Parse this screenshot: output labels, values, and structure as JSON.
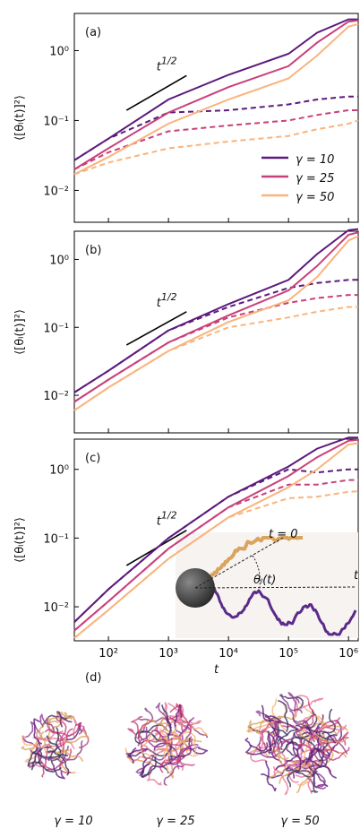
{
  "chart_data": [
    {
      "type": "line",
      "label": "(a)",
      "ylabel": "⟨[θₗ(t)]²⟩",
      "xscale": "log",
      "yscale": "log",
      "xlim": [
        27,
        1450000
      ],
      "ylim": [
        0.0035,
        3.4
      ],
      "xticks": [
        100,
        1000,
        10000,
        100000,
        1000000
      ],
      "yticks": [
        {
          "value": 0.01,
          "label": "10⁻²"
        },
        {
          "value": 0.1,
          "label": "10⁻¹"
        },
        {
          "value": 1,
          "label": "10⁰"
        }
      ],
      "legend": "lower right",
      "slope_line": {
        "x": [
          200,
          2000
        ],
        "y": [
          0.14,
          0.44
        ],
        "base": "t",
        "exponent": "1/2"
      },
      "x": [
        27,
        100,
        1000,
        10000,
        100000,
        300000,
        1000000,
        1450000
      ],
      "series": [
        {
          "name": "γ = 10",
          "color": "#5c1a7d",
          "values": [
            0.027,
            0.055,
            0.2,
            0.45,
            0.9,
            1.8,
            2.8,
            2.8
          ],
          "dashed_values": [
            0.027,
            0.055,
            0.13,
            0.14,
            0.17,
            0.2,
            0.22,
            0.22
          ]
        },
        {
          "name": "γ = 25",
          "color": "#c8407a",
          "values": [
            0.02,
            0.04,
            0.13,
            0.3,
            0.6,
            1.3,
            2.6,
            2.7
          ],
          "dashed_values": [
            0.02,
            0.035,
            0.07,
            0.085,
            0.1,
            0.12,
            0.14,
            0.14
          ]
        },
        {
          "name": "γ = 50",
          "color": "#f9b47c",
          "values": [
            0.017,
            0.03,
            0.09,
            0.2,
            0.4,
            0.85,
            2.2,
            2.4
          ],
          "dashed_values": [
            0.017,
            0.025,
            0.04,
            0.05,
            0.06,
            0.075,
            0.09,
            0.1
          ]
        }
      ]
    },
    {
      "type": "line",
      "label": "(b)",
      "ylabel": "⟨[θₗ(t)]²⟩",
      "xscale": "log",
      "yscale": "log",
      "xlim": [
        27,
        1450000
      ],
      "ylim": [
        0.0028,
        2.6
      ],
      "xticks": [
        100,
        1000,
        10000,
        100000,
        1000000
      ],
      "yticks": [
        {
          "value": 0.01,
          "label": "10⁻²"
        },
        {
          "value": 0.1,
          "label": "10⁻¹"
        },
        {
          "value": 1,
          "label": "10⁰"
        }
      ],
      "slope_line": {
        "x": [
          200,
          2000
        ],
        "y": [
          0.055,
          0.17
        ],
        "base": "t",
        "exponent": "1/2"
      },
      "x": [
        27,
        100,
        1000,
        10000,
        100000,
        300000,
        1000000,
        1450000
      ],
      "series": [
        {
          "name": "γ = 10",
          "color": "#5c1a7d",
          "values": [
            0.011,
            0.023,
            0.09,
            0.22,
            0.5,
            1.2,
            2.7,
            2.8
          ],
          "dashed_values": [
            0.011,
            0.023,
            0.09,
            0.2,
            0.38,
            0.45,
            0.5,
            0.5
          ]
        },
        {
          "name": "γ = 25",
          "color": "#c8407a",
          "values": [
            0.008,
            0.017,
            0.06,
            0.15,
            0.35,
            0.8,
            2.3,
            2.5
          ],
          "dashed_values": [
            0.008,
            0.017,
            0.06,
            0.14,
            0.23,
            0.27,
            0.3,
            0.3
          ]
        },
        {
          "name": "γ = 50",
          "color": "#f9b47c",
          "values": [
            0.006,
            0.013,
            0.045,
            0.12,
            0.25,
            0.55,
            1.9,
            2.2
          ],
          "dashed_values": [
            0.006,
            0.013,
            0.045,
            0.1,
            0.14,
            0.17,
            0.2,
            0.2
          ]
        }
      ]
    },
    {
      "type": "line",
      "label": "(c)",
      "ylabel": "⟨[θₗ(t)]²⟩",
      "xlabel": "t",
      "xscale": "log",
      "yscale": "log",
      "xlim": [
        27,
        1450000
      ],
      "ylim": [
        0.0032,
        2.75
      ],
      "xticks": [
        {
          "value": 100,
          "label": "10²"
        },
        {
          "value": 1000,
          "label": "10³"
        },
        {
          "value": 10000,
          "label": "10⁴"
        },
        {
          "value": 100000,
          "label": "10⁵"
        },
        {
          "value": 1000000,
          "label": "10⁶"
        }
      ],
      "yticks": [
        {
          "value": 0.01,
          "label": "10⁻²"
        },
        {
          "value": 0.1,
          "label": "10⁻¹"
        },
        {
          "value": 1,
          "label": "10⁰"
        }
      ],
      "slope_line": {
        "x": [
          200,
          2000
        ],
        "y": [
          0.04,
          0.13
        ],
        "base": "t",
        "exponent": "1/2"
      },
      "inset": {
        "start_label": "t = 0",
        "angle_label": "θₗ(t)",
        "end_label": "t"
      },
      "x": [
        27,
        100,
        1000,
        10000,
        100000,
        300000,
        1000000,
        1450000
      ],
      "series": [
        {
          "name": "γ = 10",
          "color": "#5c1a7d",
          "values": [
            0.006,
            0.018,
            0.1,
            0.4,
            1.1,
            2.0,
            2.9,
            2.9
          ],
          "dashed_values": [
            0.006,
            0.018,
            0.1,
            0.4,
            1.0,
            0.9,
            1.0,
            1.0
          ]
        },
        {
          "name": "γ = 25",
          "color": "#c8407a",
          "values": [
            0.0045,
            0.012,
            0.07,
            0.28,
            0.8,
            1.5,
            2.6,
            2.7
          ],
          "dashed_values": [
            0.0045,
            0.012,
            0.07,
            0.28,
            0.6,
            0.6,
            0.7,
            0.7
          ]
        },
        {
          "name": "γ = 50",
          "color": "#f9b47c",
          "values": [
            0.0035,
            0.009,
            0.05,
            0.2,
            0.55,
            1.0,
            2.3,
            2.4
          ],
          "dashed_values": [
            0.0035,
            0.009,
            0.05,
            0.2,
            0.38,
            0.4,
            0.47,
            0.48
          ]
        }
      ]
    }
  ],
  "panel_d": {
    "label": "(d)",
    "captions": [
      "γ = 10",
      "γ = 25",
      "γ = 50"
    ]
  }
}
